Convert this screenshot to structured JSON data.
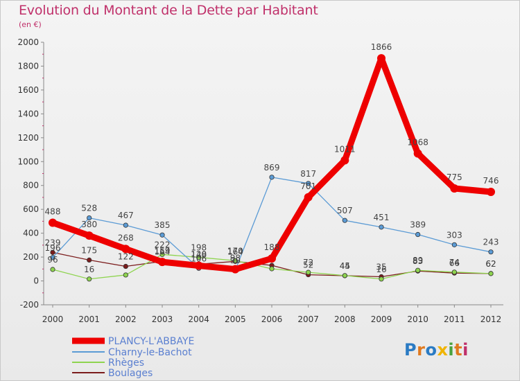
{
  "header": {
    "title": "Evolution du Montant de la Dette par Habitant",
    "subtitle": "(en €)"
  },
  "logo": {
    "text": "Proxiti",
    "letter_colors": [
      "#2a7bc4",
      "#e07a1f",
      "#2a7bc4",
      "#f0b400",
      "#4aa23e",
      "#e07a1f",
      "#c0306a"
    ]
  },
  "chart_data": {
    "type": "line",
    "title": "Evolution du Montant de la Dette par Habitant",
    "subtitle": "(en €)",
    "xlabel": "",
    "ylabel": "",
    "x": [
      "2000",
      "2001",
      "2002",
      "2003",
      "2004",
      "2005",
      "2006",
      "2007",
      "2008",
      "2009",
      "2010",
      "2011",
      "2012"
    ],
    "ylim": [
      -200,
      2000
    ],
    "yticks": [
      "-200",
      "0",
      "200",
      "400",
      "600",
      "800",
      "1000",
      "1200",
      "1400",
      "1600",
      "1800",
      "2000"
    ],
    "grid": false,
    "legend_position": "bottom-left",
    "series": [
      {
        "name": "PLANCY-L'ABBAYE",
        "color": "#ee0000",
        "label_color": "#444444",
        "values": [
          488,
          380,
          268,
          159,
          128,
          98,
          188,
          701,
          1011,
          1866,
          1068,
          775,
          746
        ],
        "labels": [
          "488",
          "380",
          "268",
          "159",
          "128",
          "98",
          "188",
          "701",
          "1011",
          "1866",
          "1068",
          "775",
          "746"
        ]
      },
      {
        "name": "Charny-le-Bachot",
        "color": "#5b9bd5",
        "label_color": "#444444",
        "values": [
          196,
          528,
          467,
          385,
          106,
          90,
          869,
          817,
          507,
          451,
          389,
          303,
          243
        ],
        "labels": [
          "196",
          "528",
          "467",
          "385",
          "106",
          "90",
          "869",
          "817",
          "507",
          "451",
          "389",
          "303",
          "243"
        ]
      },
      {
        "name": "Rhèges",
        "color": "#8ed44f",
        "label_color": "#444444",
        "values": [
          96,
          16,
          50,
          222,
          198,
          170,
          102,
          72,
          45,
          16,
          89,
          74,
          62
        ],
        "labels": [
          "96",
          "16",
          "",
          "222",
          "198",
          "170",
          "",
          "72",
          "45",
          "16",
          "89",
          "74",
          "62"
        ]
      },
      {
        "name": "Boulages",
        "color": "#7b1c1c",
        "label_color": "#444444",
        "values": [
          239,
          175,
          122,
          164,
          140,
          164,
          130,
          52,
          44,
          35,
          83,
          66,
          62
        ],
        "labels": [
          "239",
          "175",
          "122",
          "164",
          "140",
          "164",
          "",
          "52",
          "44",
          "35",
          "83",
          "66",
          "62"
        ]
      }
    ]
  }
}
